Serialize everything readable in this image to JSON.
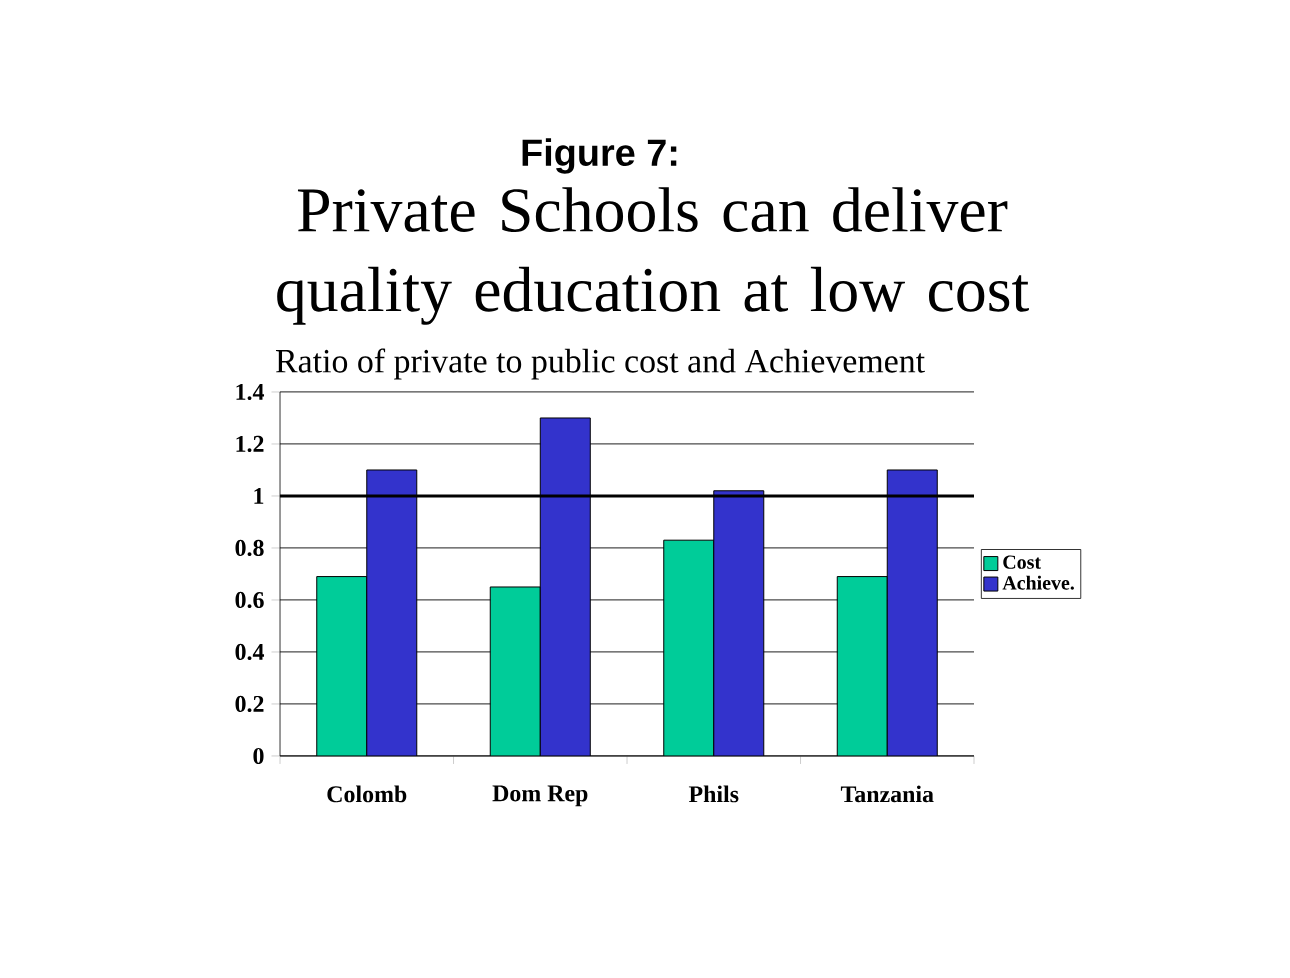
{
  "chart_data": {
    "type": "bar",
    "title": "Figure 7:",
    "subtitle": "Private Schools can deliver quality education at low cost",
    "annotations": [
      "Ratio of private to public cost and Achievement"
    ],
    "categories": [
      "Colomb",
      "Dom Rep",
      "Phils",
      "Tanzania"
    ],
    "series": [
      {
        "name": "Cost",
        "color": "#00cc99",
        "values": [
          0.69,
          0.65,
          0.83,
          0.69
        ]
      },
      {
        "name": "Achieve.",
        "color": "#3333cc",
        "values": [
          1.1,
          1.3,
          1.02,
          1.1
        ]
      }
    ],
    "ylim": [
      0,
      1.4
    ],
    "yticks": [
      0,
      0.2,
      0.4,
      0.6,
      0.8,
      1,
      1.2,
      1.4
    ],
    "ref_lines": [
      {
        "axis": "y",
        "value": 1,
        "color": "#000000"
      }
    ],
    "grid": "y",
    "legend": "right"
  }
}
